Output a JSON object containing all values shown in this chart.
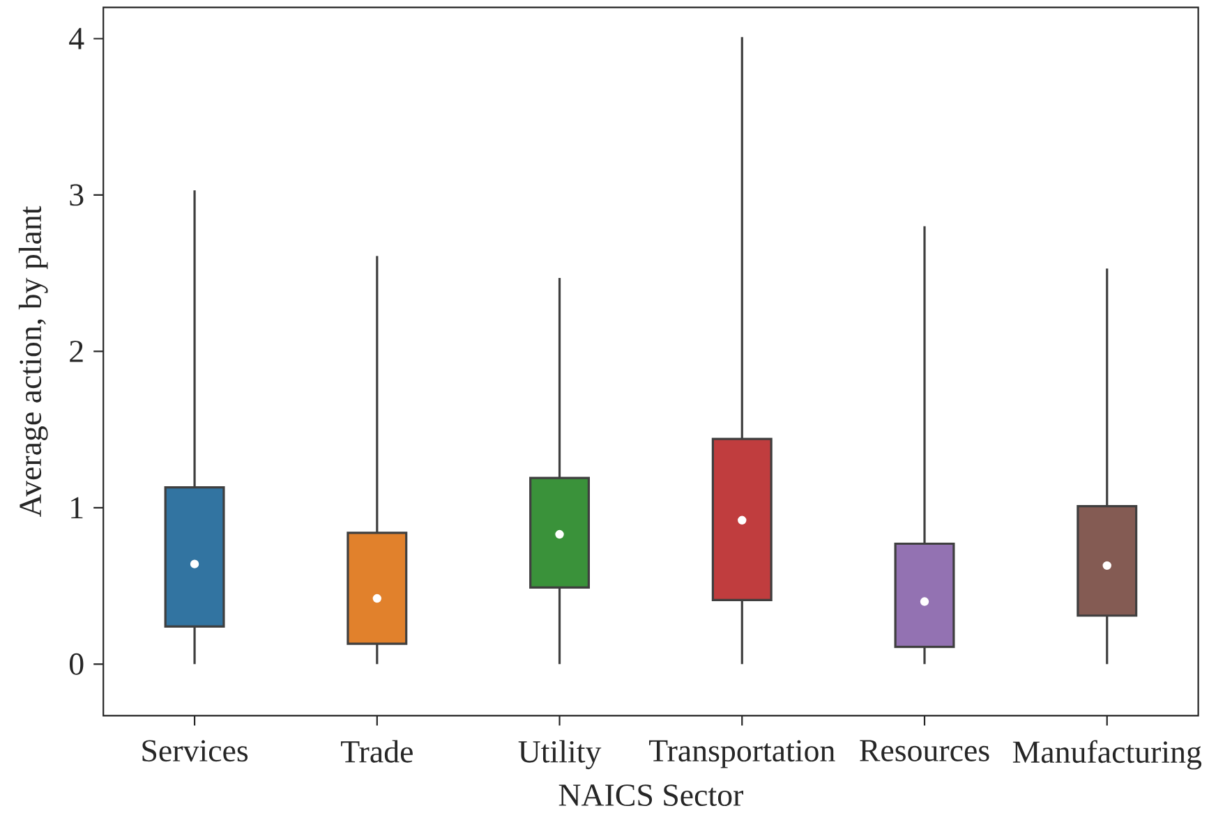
{
  "chart_data": {
    "type": "box",
    "xlabel": "NAICS Sector",
    "ylabel": "Average action, by plant",
    "categories": [
      "Services",
      "Trade",
      "Utility",
      "Transportation",
      "Resources",
      "Manufacturing"
    ],
    "colors": [
      "#3274a1",
      "#e1812c",
      "#3a923a",
      "#c03d3e",
      "#9372b2",
      "#845b53"
    ],
    "boxes": [
      {
        "low": 0,
        "q1": 0.24,
        "median": 0.64,
        "q3": 1.13,
        "high": 3.03
      },
      {
        "low": 0,
        "q1": 0.13,
        "median": 0.42,
        "q3": 0.84,
        "high": 2.61
      },
      {
        "low": 0,
        "q1": 0.49,
        "median": 0.83,
        "q3": 1.19,
        "high": 2.47
      },
      {
        "low": 0,
        "q1": 0.41,
        "median": 0.92,
        "q3": 1.44,
        "high": 4.01
      },
      {
        "low": 0,
        "q1": 0.11,
        "median": 0.4,
        "q3": 0.77,
        "high": 2.8
      },
      {
        "low": 0,
        "q1": 0.31,
        "median": 0.63,
        "q3": 1.01,
        "high": 2.53
      }
    ],
    "ylim": [
      -0.33,
      4.2
    ],
    "yticks": [
      0,
      1,
      2,
      3,
      4
    ]
  }
}
